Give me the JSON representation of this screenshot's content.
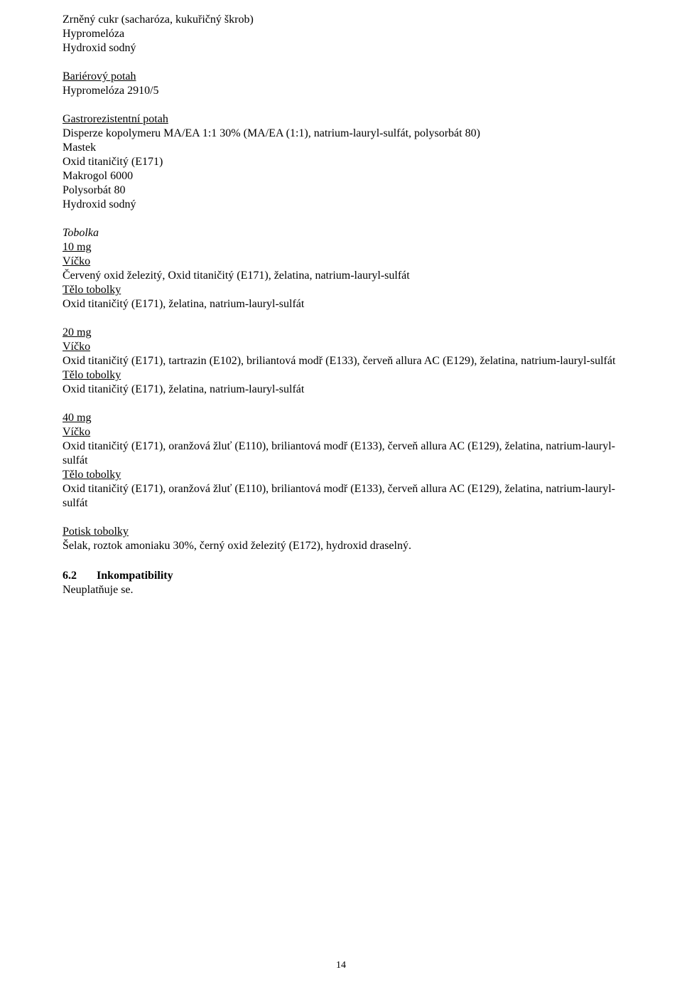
{
  "block1": {
    "line1": "Zrněný cukr (sacharóza, kukuřičný škrob)",
    "line2": "Hypromelóza",
    "line3": "Hydroxid sodný"
  },
  "block2": {
    "heading": "Bariérový potah",
    "line1": "Hypromelóza 2910/5"
  },
  "block3": {
    "heading": "Gastrorezistentní potah",
    "line1": "Disperze kopolymeru MA/EA 1:1 30% (MA/EA (1:1), natrium-lauryl-sulfát, polysorbát 80)",
    "line2": "Mastek",
    "line3": "Oxid titaničitý (E171)",
    "line4": "Makrogol 6000",
    "line5": "Polysorbát 80",
    "line6": "Hydroxid sodný"
  },
  "tobolka": {
    "heading": "Tobolka",
    "dose10": {
      "label": "10 mg",
      "vicko_label": "Víčko",
      "vicko_text": "Červený oxid železitý, Oxid titaničitý (E171), želatina, natrium-lauryl-sulfát",
      "telo_label": "Tělo tobolky",
      "telo_text": "Oxid titaničitý (E171), želatina, natrium-lauryl-sulfát"
    },
    "dose20": {
      "label": "20 mg",
      "vicko_label": "Víčko",
      "vicko_text1": "Oxid titaničitý (E171), tartrazin (E102), briliantová modř (E133), červeň allura AC (E129), želatina, natrium-lauryl-sulfát",
      "telo_label": "Tělo tobolky",
      "telo_text": "Oxid titaničitý (E171), želatina, natrium-lauryl-sulfát"
    },
    "dose40": {
      "label": "40 mg",
      "vicko_label": "Víčko",
      "vicko_text1": "Oxid titaničitý (E171), oranžová žluť (E110), briliantová modř (E133), červeň allura AC (E129), želatina, natrium-lauryl-sulfát",
      "telo_label": "Tělo tobolky",
      "telo_text": "Oxid titaničitý (E171), oranžová žluť (E110), briliantová modř (E133), červeň allura AC (E129), želatina, natrium-lauryl-sulfát"
    }
  },
  "potisk": {
    "heading": "Potisk tobolky",
    "text": "Šelak, roztok amoniaku 30%, černý oxid železitý (E172), hydroxid draselný."
  },
  "section62": {
    "num": "6.2",
    "title": "Inkompatibility",
    "text": "Neuplatňuje se."
  },
  "page_number": "14"
}
